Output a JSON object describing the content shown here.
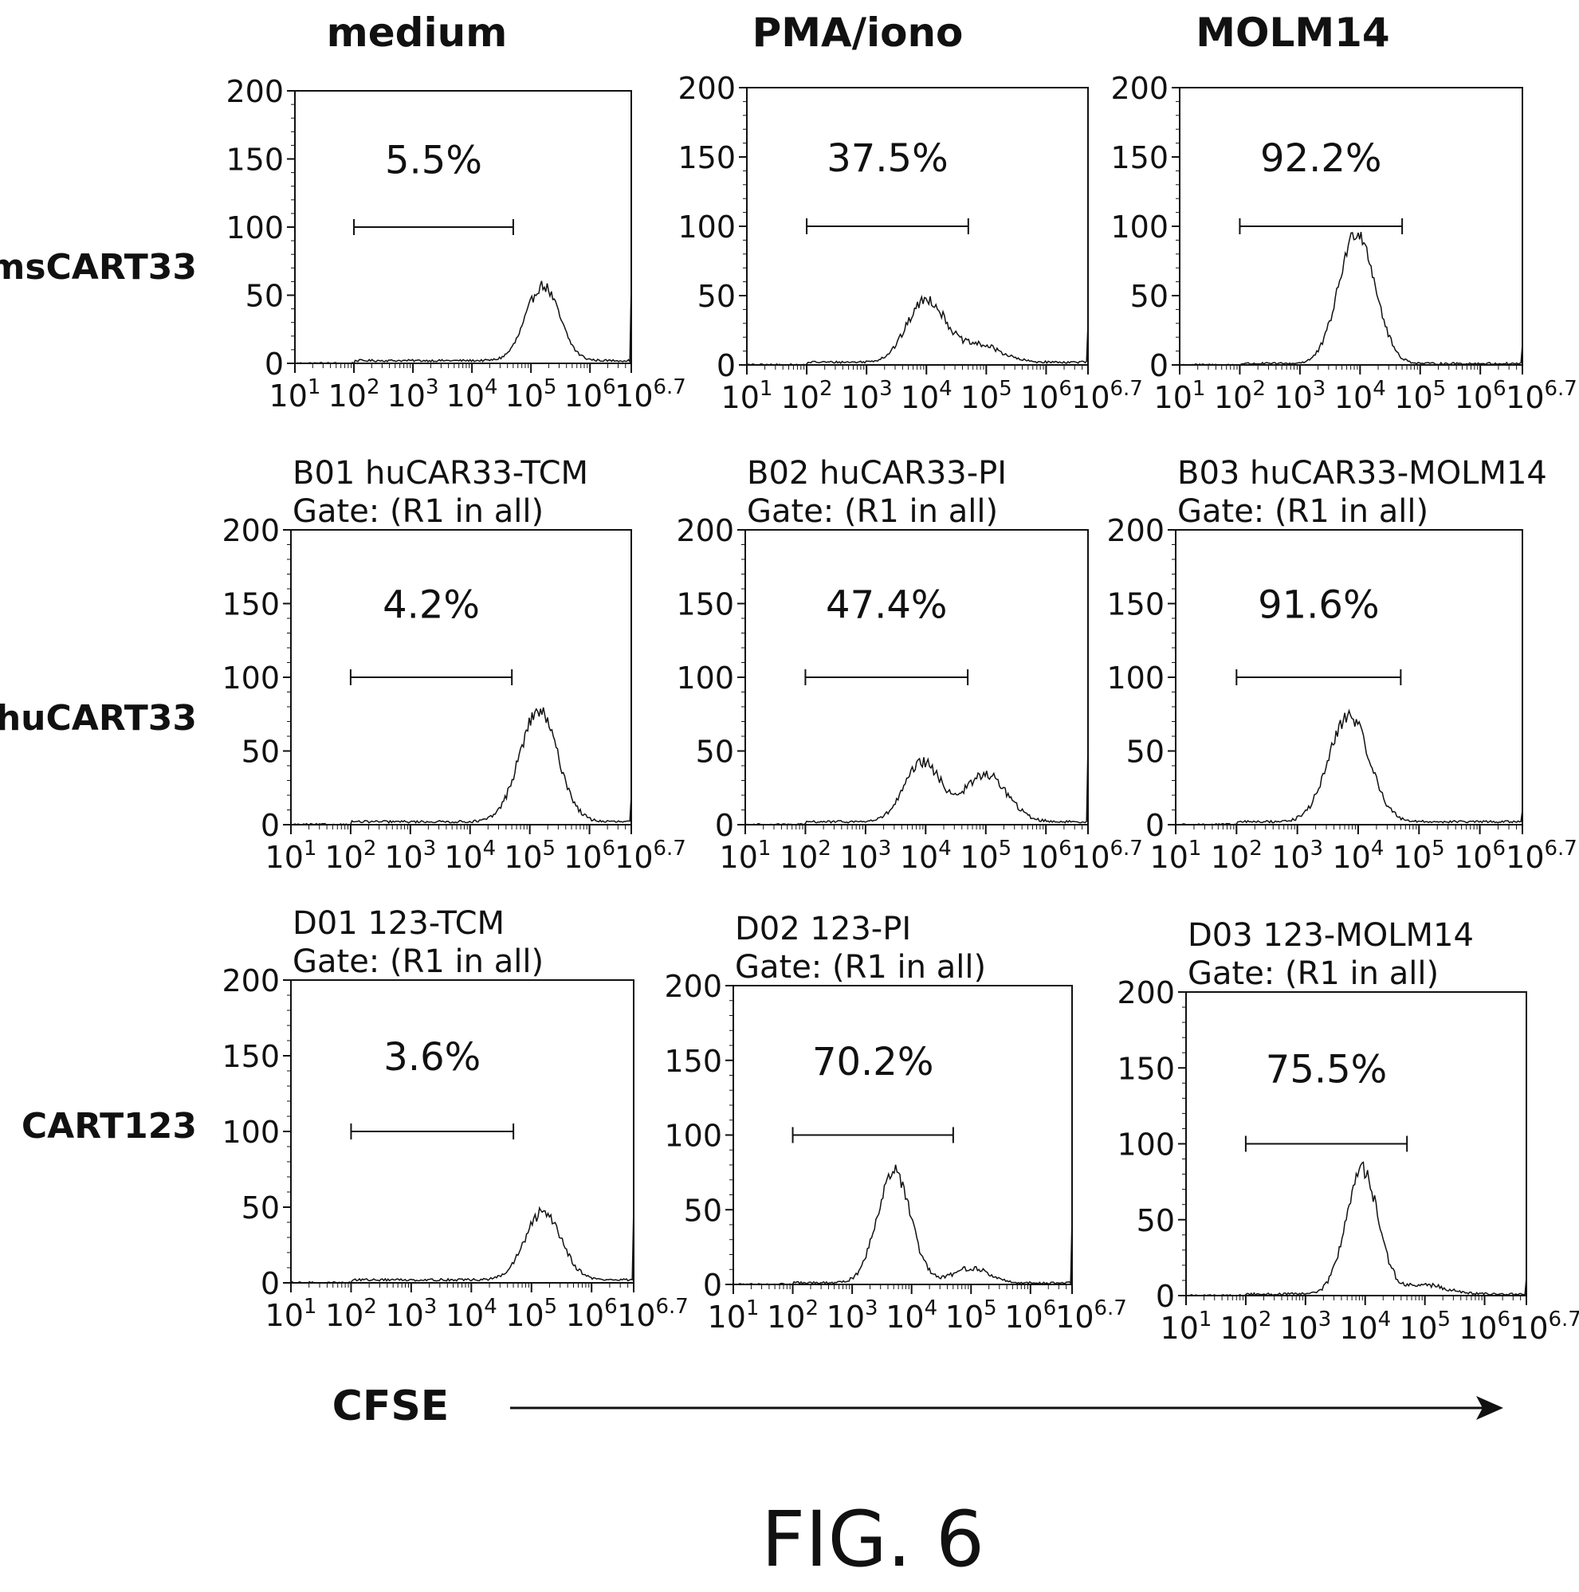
{
  "figure_label": "FIG. 6",
  "column_titles": [
    "medium",
    "PMA/iono",
    "MOLM14"
  ],
  "row_labels": [
    "msCART33",
    "huCART33",
    "CART123"
  ],
  "x_axis_label": "CFSE",
  "y_ticks": [
    "0",
    "50",
    "100",
    "150",
    "200"
  ],
  "x_ticks": [
    {
      "base": "10",
      "exp": "1"
    },
    {
      "base": "10",
      "exp": "2"
    },
    {
      "base": "10",
      "exp": "3"
    },
    {
      "base": "10",
      "exp": "4"
    },
    {
      "base": "10",
      "exp": "5"
    },
    {
      "base": "10",
      "exp": "6"
    },
    {
      "base": "10",
      "exp": "6.7"
    }
  ],
  "colors": {
    "line": "#111111",
    "background": "#ffffff"
  },
  "chart_data": [
    {
      "type": "histogram",
      "row": 0,
      "col": 0,
      "title": [],
      "gate_percent": "5.5%",
      "gate_range": [
        2.0,
        4.7
      ],
      "gate_y": 100,
      "ylim": [
        0,
        200
      ],
      "xlim": [
        1,
        6.7
      ],
      "xscale": "log",
      "peaks": [
        {
          "mu": 5.2,
          "sigma": 0.28,
          "height": 55
        }
      ],
      "base": 2,
      "end_spike": 60
    },
    {
      "type": "histogram",
      "row": 0,
      "col": 1,
      "title": [],
      "gate_percent": "37.5%",
      "gate_range": [
        2.0,
        4.7
      ],
      "gate_y": 100,
      "ylim": [
        0,
        200
      ],
      "xlim": [
        1,
        6.7
      ],
      "xscale": "log",
      "peaks": [
        {
          "mu": 4.0,
          "sigma": 0.32,
          "height": 45
        },
        {
          "mu": 4.9,
          "sigma": 0.35,
          "height": 12
        }
      ],
      "base": 2,
      "end_spike": 30
    },
    {
      "type": "histogram",
      "row": 0,
      "col": 2,
      "title": [],
      "gate_percent": "92.2%",
      "gate_range": [
        2.0,
        4.7
      ],
      "gate_y": 100,
      "ylim": [
        0,
        200
      ],
      "xlim": [
        1,
        6.7
      ],
      "xscale": "log",
      "peaks": [
        {
          "mu": 3.95,
          "sigma": 0.3,
          "height": 95
        }
      ],
      "base": 1,
      "end_spike": 15
    },
    {
      "type": "histogram",
      "row": 1,
      "col": 0,
      "title": [
        "B01 huCAR33-TCM",
        "Gate: (R1 in all)"
      ],
      "gate_percent": "4.2%",
      "gate_range": [
        2.0,
        4.7
      ],
      "gate_y": 100,
      "ylim": [
        0,
        200
      ],
      "xlim": [
        1,
        6.7
      ],
      "xscale": "log",
      "peaks": [
        {
          "mu": 5.15,
          "sigma": 0.32,
          "height": 75
        }
      ],
      "base": 2,
      "end_spike": 20
    },
    {
      "type": "histogram",
      "row": 1,
      "col": 1,
      "title": [
        "B02 huCAR33-PI",
        "Gate: (R1 in all)"
      ],
      "gate_percent": "47.4%",
      "gate_range": [
        2.0,
        4.7
      ],
      "gate_y": 100,
      "ylim": [
        0,
        200
      ],
      "xlim": [
        1,
        6.7
      ],
      "xscale": "log",
      "peaks": [
        {
          "mu": 3.95,
          "sigma": 0.3,
          "height": 40
        },
        {
          "mu": 5.0,
          "sigma": 0.35,
          "height": 32
        }
      ],
      "base": 2,
      "end_spike": 55
    },
    {
      "type": "histogram",
      "row": 1,
      "col": 2,
      "title": [
        "B03 huCAR33-MOLM14",
        "Gate: (R1 in all)"
      ],
      "gate_percent": "91.6%",
      "gate_range": [
        2.0,
        4.7
      ],
      "gate_y": 100,
      "ylim": [
        0,
        200
      ],
      "xlim": [
        1,
        6.7
      ],
      "xscale": "log",
      "peaks": [
        {
          "mu": 3.85,
          "sigma": 0.33,
          "height": 72
        }
      ],
      "base": 2,
      "end_spike": 10
    },
    {
      "type": "histogram",
      "row": 2,
      "col": 0,
      "title": [
        "D01 123-TCM",
        "Gate: (R1 in all)"
      ],
      "gate_percent": "3.6%",
      "gate_range": [
        2.0,
        4.7
      ],
      "gate_y": 100,
      "ylim": [
        0,
        200
      ],
      "xlim": [
        1,
        6.7
      ],
      "xscale": "log",
      "peaks": [
        {
          "mu": 5.2,
          "sigma": 0.3,
          "height": 45
        }
      ],
      "base": 2,
      "end_spike": 50
    },
    {
      "type": "histogram",
      "row": 2,
      "col": 1,
      "title": [
        "D02 123-PI",
        "Gate: (R1 in all)"
      ],
      "gate_percent": "70.2%",
      "gate_range": [
        2.0,
        4.7
      ],
      "gate_y": 100,
      "ylim": [
        0,
        200
      ],
      "xlim": [
        1,
        6.7
      ],
      "xscale": "log",
      "peaks": [
        {
          "mu": 3.7,
          "sigma": 0.28,
          "height": 75
        },
        {
          "mu": 5.0,
          "sigma": 0.3,
          "height": 10
        }
      ],
      "base": 1,
      "end_spike": 45
    },
    {
      "type": "histogram",
      "row": 2,
      "col": 2,
      "title": [
        "D03 123-MOLM14",
        "Gate: (R1 in all)"
      ],
      "gate_percent": "75.5%",
      "gate_range": [
        2.0,
        4.7
      ],
      "gate_y": 100,
      "ylim": [
        0,
        200
      ],
      "xlim": [
        1,
        6.7
      ],
      "xscale": "log",
      "peaks": [
        {
          "mu": 3.95,
          "sigma": 0.27,
          "height": 82
        },
        {
          "mu": 5.0,
          "sigma": 0.35,
          "height": 6
        }
      ],
      "base": 1,
      "end_spike": 12
    }
  ]
}
